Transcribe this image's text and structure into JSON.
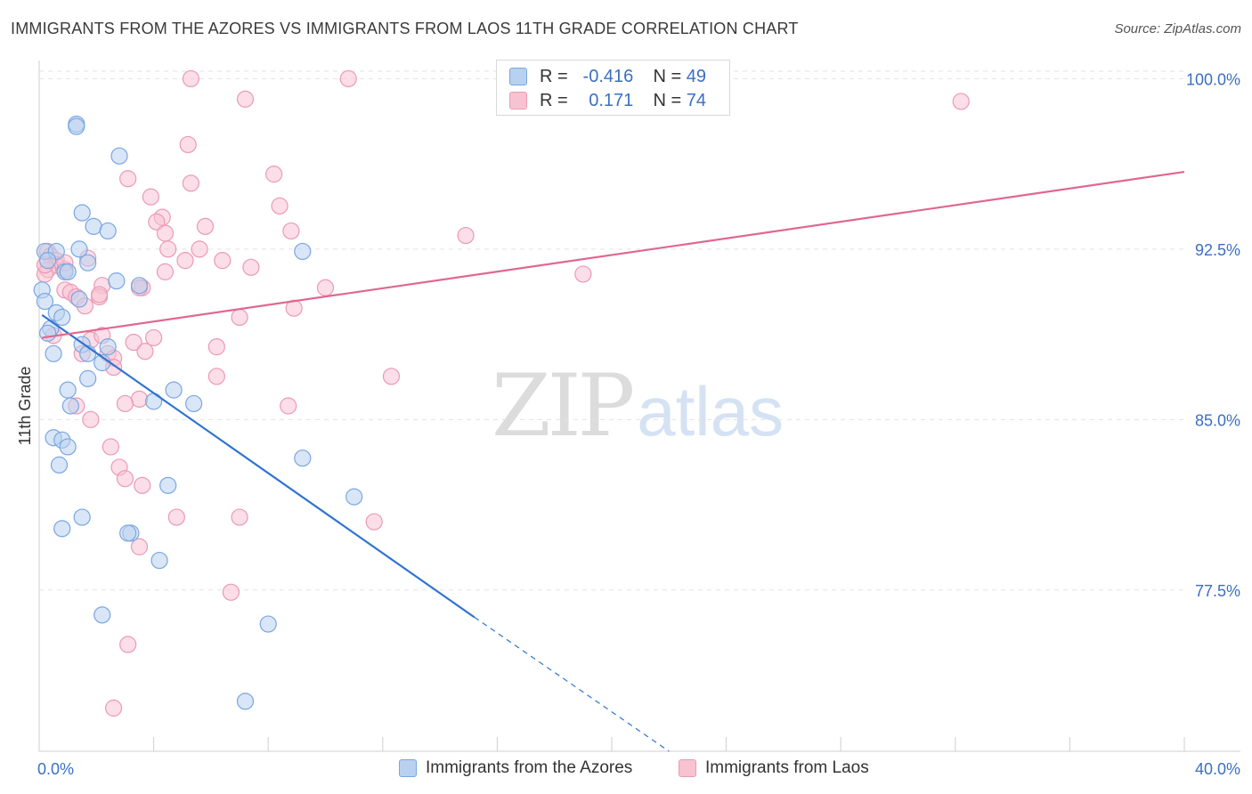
{
  "title": "IMMIGRANTS FROM THE AZORES VS IMMIGRANTS FROM LAOS 11TH GRADE CORRELATION CHART",
  "source": "Source: ZipAtlas.com",
  "watermark": {
    "part1": "ZIP",
    "part2": "atlas"
  },
  "stats": {
    "row1": {
      "r_label": "R =",
      "r_value": "-0.416",
      "n_label": "N =",
      "n_value": "49"
    },
    "row2": {
      "r_label": "R =",
      "r_value": " 0.171",
      "n_label": "N =",
      "n_value": "74"
    }
  },
  "legend": {
    "azores": "Immigrants from the Azores",
    "laos": "Immigrants from Laos"
  },
  "colors": {
    "azores_fill": "#b9d1f1",
    "azores_stroke": "#7aa6e0",
    "azores_line": "#2f74d0",
    "laos_fill": "#f7c3d3",
    "laos_stroke": "#eb9ab4",
    "laos_line": "#e06890",
    "tick_label": "#3a6fc4",
    "grid": "#e3e3e3"
  },
  "chart_data": {
    "type": "scatter",
    "title": "IMMIGRANTS FROM THE AZORES VS IMMIGRANTS FROM LAOS 11TH GRADE CORRELATION CHART",
    "xlabel": "",
    "ylabel": "11th Grade",
    "xlim": [
      0,
      40
    ],
    "ylim": [
      70.4,
      100.8
    ],
    "x_tick_labels": [
      "0.0%",
      "40.0%"
    ],
    "y_ticks": [
      77.5,
      85.0,
      92.5,
      100.0
    ],
    "y_tick_labels": [
      "77.5%",
      "85.0%",
      "92.5%",
      "100.0%"
    ],
    "grid": true,
    "legend_position": "bottom-center",
    "series": [
      {
        "name": "Immigrants from the Azores",
        "color": "azores",
        "trend": {
          "x": [
            0.1,
            15.2
          ],
          "y": [
            89.6,
            76.3
          ],
          "dashed_to": [
            22.0,
            70.4
          ]
        },
        "points": [
          [
            1.3,
            98.0
          ],
          [
            1.3,
            97.9
          ],
          [
            2.8,
            96.6
          ],
          [
            1.5,
            94.1
          ],
          [
            1.9,
            93.5
          ],
          [
            2.4,
            93.3
          ],
          [
            0.2,
            92.4
          ],
          [
            0.6,
            92.4
          ],
          [
            1.4,
            92.5
          ],
          [
            9.2,
            92.4
          ],
          [
            1.7,
            91.9
          ],
          [
            0.3,
            92.0
          ],
          [
            0.9,
            91.5
          ],
          [
            1.0,
            91.5
          ],
          [
            2.7,
            91.1
          ],
          [
            0.1,
            90.7
          ],
          [
            3.5,
            90.9
          ],
          [
            1.4,
            90.3
          ],
          [
            0.2,
            90.2
          ],
          [
            0.6,
            89.7
          ],
          [
            0.8,
            89.5
          ],
          [
            0.4,
            89.0
          ],
          [
            0.3,
            88.8
          ],
          [
            0.5,
            87.9
          ],
          [
            1.5,
            88.3
          ],
          [
            2.4,
            88.2
          ],
          [
            1.7,
            87.9
          ],
          [
            2.2,
            87.5
          ],
          [
            1.7,
            86.8
          ],
          [
            1.0,
            86.3
          ],
          [
            4.7,
            86.3
          ],
          [
            1.1,
            85.6
          ],
          [
            4.0,
            85.8
          ],
          [
            5.4,
            85.7
          ],
          [
            0.5,
            84.2
          ],
          [
            0.8,
            84.1
          ],
          [
            1.0,
            83.8
          ],
          [
            9.2,
            83.3
          ],
          [
            0.7,
            83.0
          ],
          [
            4.5,
            82.1
          ],
          [
            11.0,
            81.6
          ],
          [
            1.5,
            80.7
          ],
          [
            0.8,
            80.2
          ],
          [
            3.2,
            80.0
          ],
          [
            4.2,
            78.8
          ],
          [
            2.2,
            76.4
          ],
          [
            8.0,
            76.0
          ],
          [
            7.2,
            72.6
          ],
          [
            3.1,
            80.0
          ]
        ]
      },
      {
        "name": "Immigrants from Laos",
        "color": "laos",
        "trend": {
          "x": [
            0.1,
            40.0
          ],
          "y": [
            88.6,
            95.9
          ]
        },
        "points": [
          [
            5.3,
            100.0
          ],
          [
            10.8,
            100.0
          ],
          [
            7.2,
            99.1
          ],
          [
            32.2,
            99.0
          ],
          [
            5.2,
            97.1
          ],
          [
            8.2,
            95.8
          ],
          [
            3.1,
            95.6
          ],
          [
            5.3,
            95.4
          ],
          [
            3.9,
            94.8
          ],
          [
            8.4,
            94.4
          ],
          [
            4.3,
            93.9
          ],
          [
            4.1,
            93.7
          ],
          [
            5.8,
            93.5
          ],
          [
            8.8,
            93.3
          ],
          [
            14.9,
            93.1
          ],
          [
            4.4,
            93.2
          ],
          [
            4.5,
            92.5
          ],
          [
            5.6,
            92.5
          ],
          [
            0.3,
            92.4
          ],
          [
            0.4,
            92.2
          ],
          [
            1.7,
            92.1
          ],
          [
            0.6,
            92.0
          ],
          [
            5.1,
            92.0
          ],
          [
            6.4,
            92.0
          ],
          [
            0.6,
            91.8
          ],
          [
            0.3,
            91.6
          ],
          [
            0.9,
            91.6
          ],
          [
            7.4,
            91.7
          ],
          [
            4.4,
            91.5
          ],
          [
            19.0,
            91.4
          ],
          [
            0.2,
            91.4
          ],
          [
            2.2,
            90.9
          ],
          [
            3.6,
            90.8
          ],
          [
            10.0,
            90.8
          ],
          [
            0.9,
            90.7
          ],
          [
            1.1,
            90.6
          ],
          [
            1.3,
            90.4
          ],
          [
            2.1,
            90.4
          ],
          [
            2.1,
            90.5
          ],
          [
            3.5,
            90.8
          ],
          [
            1.6,
            90.0
          ],
          [
            8.9,
            89.9
          ],
          [
            7.0,
            89.5
          ],
          [
            0.5,
            88.7
          ],
          [
            1.8,
            88.5
          ],
          [
            4.0,
            88.6
          ],
          [
            3.3,
            88.4
          ],
          [
            6.2,
            88.2
          ],
          [
            3.7,
            88.0
          ],
          [
            1.5,
            87.9
          ],
          [
            2.4,
            87.9
          ],
          [
            2.6,
            87.7
          ],
          [
            2.6,
            87.3
          ],
          [
            12.3,
            86.9
          ],
          [
            6.2,
            86.9
          ],
          [
            3.5,
            85.9
          ],
          [
            3.0,
            85.7
          ],
          [
            1.3,
            85.6
          ],
          [
            8.7,
            85.6
          ],
          [
            1.8,
            85.0
          ],
          [
            2.5,
            83.8
          ],
          [
            2.8,
            82.9
          ],
          [
            3.0,
            82.4
          ],
          [
            3.6,
            82.1
          ],
          [
            4.8,
            80.7
          ],
          [
            7.0,
            80.7
          ],
          [
            11.7,
            80.5
          ],
          [
            3.5,
            79.4
          ],
          [
            6.7,
            77.4
          ],
          [
            3.1,
            75.1
          ],
          [
            2.6,
            72.3
          ],
          [
            0.2,
            91.8
          ],
          [
            0.9,
            91.9
          ],
          [
            2.2,
            88.7
          ]
        ]
      }
    ]
  }
}
